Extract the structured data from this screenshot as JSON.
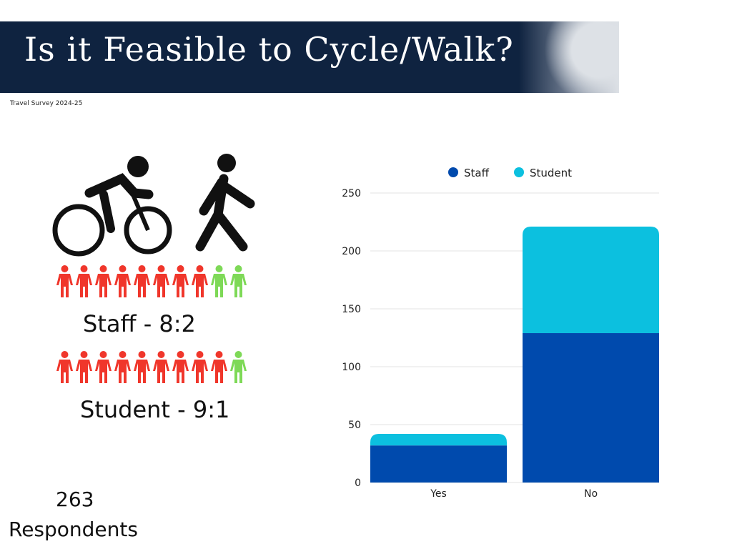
{
  "header": {
    "title": "Is it Feasible to Cycle/Walk?",
    "subtitle": "Travel Survey 2024-25"
  },
  "infographic": {
    "staff_label": "Staff - 8:2",
    "staff_no": 8,
    "staff_yes": 2,
    "student_label": "Student - 9:1",
    "student_no": 9,
    "student_yes": 1,
    "respondents_count": "263",
    "respondents_label": "Respondents",
    "colors": {
      "no": "#f0362b",
      "yes": "#7ed957"
    }
  },
  "chart_data": {
    "type": "bar",
    "stacked": true,
    "categories": [
      "Yes",
      "No"
    ],
    "series": [
      {
        "name": "Staff",
        "values": [
          32,
          129
        ],
        "color": "#004aad"
      },
      {
        "name": "Student",
        "values": [
          10,
          92
        ],
        "color": "#0cc0df"
      }
    ],
    "ylim": [
      0,
      250
    ],
    "yticks": [
      "0",
      "50",
      "100",
      "150",
      "200",
      "250"
    ],
    "legend": "top",
    "grid": true,
    "xlabel": "",
    "ylabel": ""
  }
}
